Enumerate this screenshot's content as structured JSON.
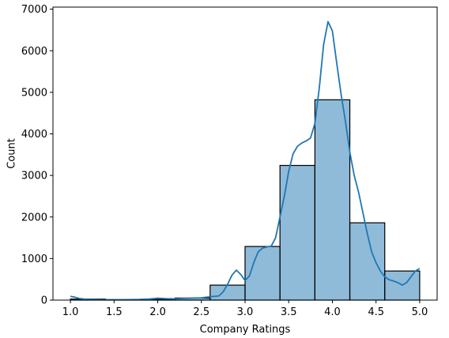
{
  "chart_data": {
    "type": "bar",
    "title": "",
    "xlabel": "Company Ratings",
    "ylabel": "Count",
    "xlim": [
      0.8,
      5.2
    ],
    "ylim": [
      0,
      7050
    ],
    "xticks": [
      "1.0",
      "1.5",
      "2.0",
      "2.5",
      "3.0",
      "3.5",
      "4.0",
      "4.5",
      "5.0"
    ],
    "yticks": [
      "0",
      "1000",
      "2000",
      "3000",
      "4000",
      "5000",
      "6000",
      "7000"
    ],
    "grid": false,
    "bins": [
      {
        "x0": 1.0,
        "x1": 1.4,
        "value": 25
      },
      {
        "x0": 1.4,
        "x1": 1.8,
        "value": 10
      },
      {
        "x0": 1.8,
        "x1": 2.2,
        "value": 20
      },
      {
        "x0": 2.2,
        "x1": 2.6,
        "value": 50
      },
      {
        "x0": 2.6,
        "x1": 3.0,
        "value": 360
      },
      {
        "x0": 3.0,
        "x1": 3.4,
        "value": 1290
      },
      {
        "x0": 3.4,
        "x1": 3.8,
        "value": 3240
      },
      {
        "x0": 3.8,
        "x1": 4.2,
        "value": 4820
      },
      {
        "x0": 4.2,
        "x1": 4.6,
        "value": 1860
      },
      {
        "x0": 4.6,
        "x1": 5.0,
        "value": 700
      }
    ],
    "kde": {
      "x": [
        1.0,
        1.05,
        1.1,
        1.2,
        1.4,
        1.6,
        1.8,
        1.9,
        2.0,
        2.1,
        2.2,
        2.3,
        2.4,
        2.5,
        2.6,
        2.7,
        2.75,
        2.8,
        2.85,
        2.9,
        2.95,
        3.0,
        3.05,
        3.1,
        3.15,
        3.2,
        3.25,
        3.3,
        3.35,
        3.4,
        3.45,
        3.5,
        3.55,
        3.6,
        3.65,
        3.7,
        3.75,
        3.8,
        3.85,
        3.9,
        3.95,
        4.0,
        4.05,
        4.1,
        4.15,
        4.2,
        4.25,
        4.3,
        4.35,
        4.4,
        4.45,
        4.5,
        4.55,
        4.6,
        4.65,
        4.7,
        4.75,
        4.8,
        4.85,
        4.9,
        4.95,
        5.0
      ],
      "y": [
        90,
        70,
        40,
        15,
        8,
        8,
        15,
        25,
        45,
        35,
        30,
        40,
        50,
        55,
        80,
        100,
        200,
        380,
        600,
        720,
        620,
        470,
        580,
        900,
        1160,
        1250,
        1280,
        1300,
        1500,
        2000,
        2500,
        3100,
        3520,
        3700,
        3780,
        3830,
        3900,
        4250,
        5100,
        6150,
        6700,
        6480,
        5700,
        4950,
        4300,
        3560,
        3000,
        2600,
        2100,
        1600,
        1160,
        900,
        700,
        560,
        490,
        460,
        420,
        360,
        420,
        560,
        700,
        760
      ]
    }
  }
}
